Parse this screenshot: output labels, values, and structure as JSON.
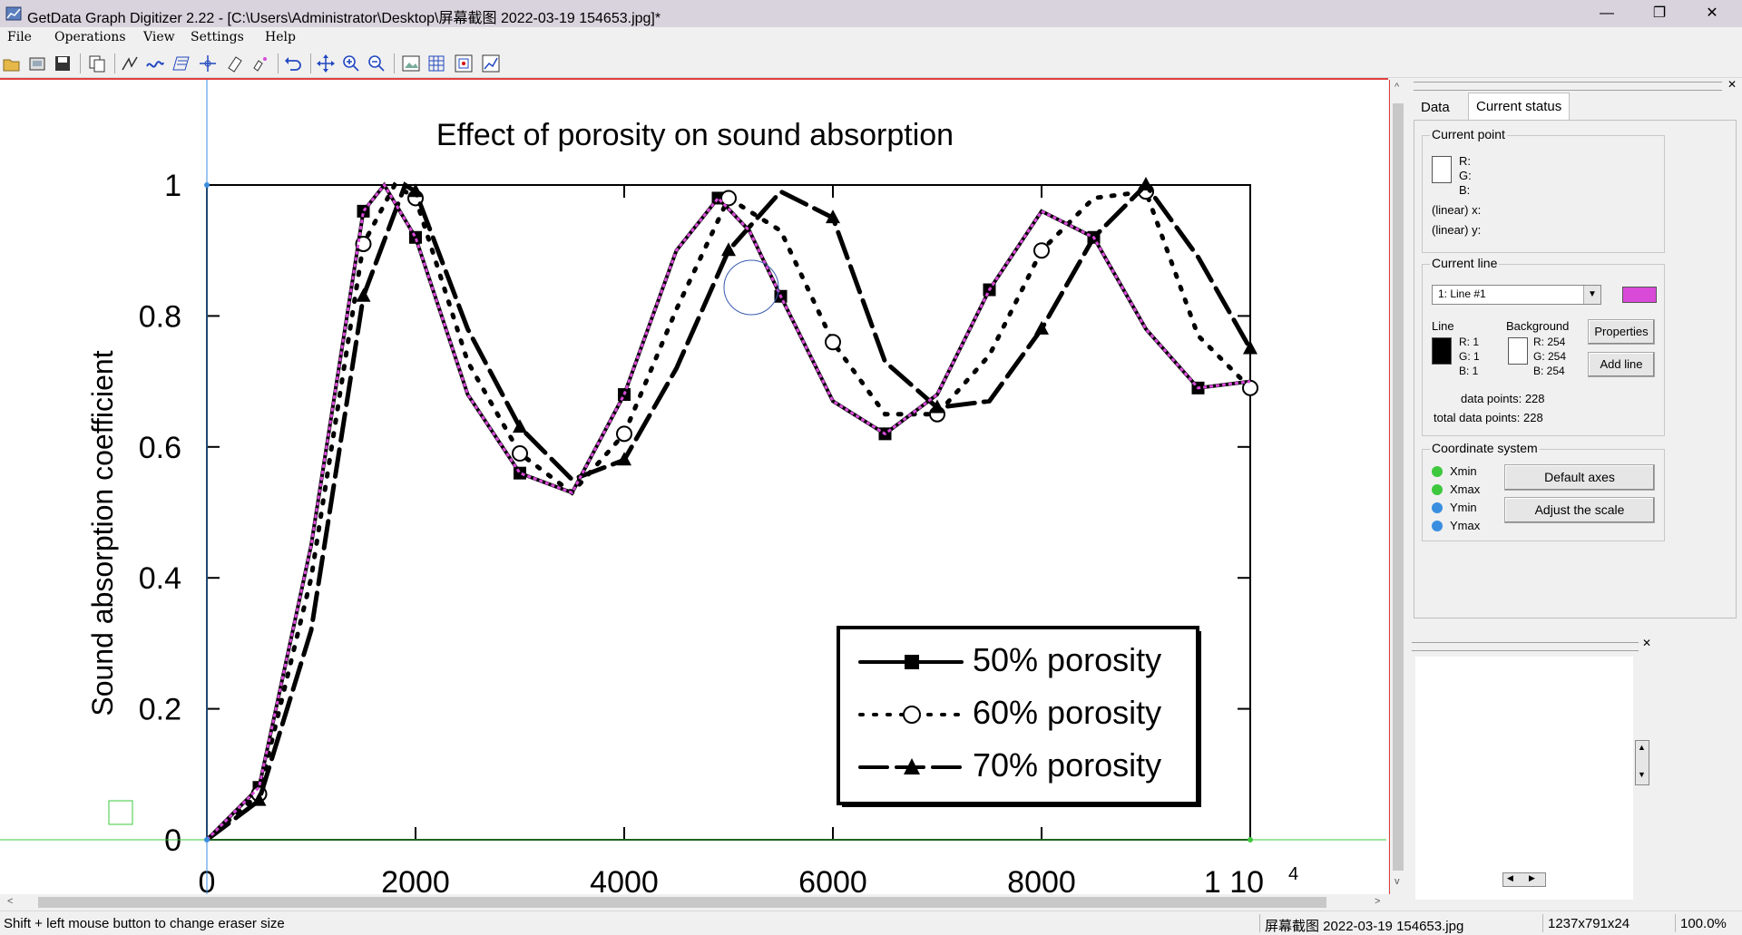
{
  "app": {
    "title": "GetData Graph Digitizer 2.22 - [C:\\Users\\Administrator\\Desktop\\屏幕截图 2022-03-19 154653.jpg]*",
    "window_controls": {
      "minimize": "—",
      "maximize": "❐",
      "close": "✕"
    }
  },
  "menu": [
    "File",
    "Operations",
    "View",
    "Settings",
    "Help"
  ],
  "toolbar": {
    "buttons": [
      "open-icon",
      "scan-icon",
      "save-icon",
      "copy-icon",
      "point-capture-icon",
      "line-capture-icon",
      "area-capture-icon",
      "axis-icon",
      "eraser-icon",
      "eraser-points-icon",
      "undo-icon",
      "move-icon",
      "zoom-in-icon",
      "zoom-out-icon",
      "image-icon",
      "grid-icon",
      "scale-icon",
      "graph-icon"
    ]
  },
  "plot": {
    "title": "Effect of porosity on sound absorption",
    "ylabel": "Sound absorption coefficient",
    "y_ticks": [
      "0",
      "0.2",
      "0.4",
      "0.6",
      "0.8",
      "1"
    ],
    "x_ticks": [
      "0",
      "2000",
      "4000",
      "6000",
      "8000",
      "1 10"
    ],
    "x_exponent": "4",
    "legend": [
      "50% porosity",
      "60% porosity",
      "70% porosity"
    ]
  },
  "chart_data": {
    "type": "line",
    "title": "Effect of porosity on sound absorption",
    "xlabel": "",
    "ylabel": "Sound absorption coefficient",
    "xlim": [
      0,
      10000
    ],
    "ylim": [
      0,
      1
    ],
    "x_tick_labels": [
      "0",
      "2000",
      "4000",
      "6000",
      "8000",
      "1 10^4"
    ],
    "y_tick_labels": [
      "0",
      "0.2",
      "0.4",
      "0.6",
      "0.8",
      "1"
    ],
    "legend_position": "bottom-right",
    "series": [
      {
        "name": "50% porosity",
        "style": "solid-square",
        "x": [
          0,
          500,
          1000,
          1500,
          1700,
          2000,
          2500,
          3000,
          3500,
          4000,
          4500,
          4900,
          5200,
          5500,
          6000,
          6500,
          7000,
          7500,
          8000,
          8500,
          9000,
          9500,
          10000
        ],
        "y": [
          0,
          0.08,
          0.45,
          0.96,
          1.0,
          0.92,
          0.68,
          0.56,
          0.53,
          0.68,
          0.9,
          0.98,
          0.93,
          0.83,
          0.67,
          0.62,
          0.68,
          0.84,
          0.96,
          0.92,
          0.78,
          0.69,
          0.7
        ]
      },
      {
        "name": "60% porosity",
        "style": "dotted-circle",
        "x": [
          0,
          500,
          1000,
          1500,
          1800,
          2000,
          2500,
          3000,
          3500,
          4000,
          4500,
          5000,
          5500,
          6000,
          6500,
          7000,
          7500,
          8000,
          8500,
          9000,
          9500,
          10000
        ],
        "y": [
          0,
          0.07,
          0.4,
          0.91,
          1.0,
          0.98,
          0.73,
          0.59,
          0.53,
          0.62,
          0.81,
          0.98,
          0.93,
          0.76,
          0.65,
          0.65,
          0.74,
          0.9,
          0.98,
          0.99,
          0.77,
          0.69
        ]
      },
      {
        "name": "70% porosity",
        "style": "dash-triangle",
        "x": [
          0,
          500,
          1000,
          1500,
          1900,
          2000,
          2500,
          3000,
          3500,
          4000,
          4500,
          5000,
          5500,
          6000,
          6500,
          7000,
          7500,
          8000,
          8500,
          9000,
          9500,
          10000
        ],
        "y": [
          0,
          0.06,
          0.32,
          0.83,
          1.0,
          0.99,
          0.78,
          0.63,
          0.55,
          0.58,
          0.72,
          0.9,
          0.99,
          0.95,
          0.73,
          0.66,
          0.67,
          0.78,
          0.92,
          1.0,
          0.89,
          0.75
        ]
      }
    ],
    "digitized_line": {
      "name": "1: Line #1",
      "color": "#d94ad9",
      "data_points": 228
    }
  },
  "panel": {
    "close": "✕",
    "tabs": [
      "Data",
      "Current status"
    ],
    "current_point": {
      "label": "Current point",
      "r": "R:",
      "g": "G:",
      "b": "B:",
      "x": "(linear)  x:",
      "y": "(linear)  y:"
    },
    "current_line": {
      "label": "Current line",
      "selected": "1: Line #1",
      "swatch_color": "#d94ad9",
      "line_label": "Line",
      "line_rgb": [
        "R: 1",
        "G: 1",
        "B: 1"
      ],
      "bg_label": "Background",
      "bg_rgb": [
        "R: 254",
        "G: 254",
        "B: 254"
      ],
      "properties": "Properties",
      "add_line": "Add line",
      "data_points": "data points:  228",
      "total_data_points": "total data points:  228"
    },
    "coordinate_system": {
      "label": "Coordinate system",
      "xmin": "Xmin",
      "xmax": "Xmax",
      "ymin": "Ymin",
      "ymax": "Ymax",
      "default_axes": "Default axes",
      "adjust_scale": "Adjust the scale",
      "x_color": "#3ec83e",
      "y_color": "#3a8ee0"
    }
  },
  "panel2": {
    "close": "✕",
    "scroll_up": "▲",
    "scroll_down": "▼",
    "scroll_left": "◀",
    "scroll_right": "▶"
  },
  "status": {
    "hint": "Shift + left mouse button to change eraser size",
    "file": "屏幕截图 2022-03-19 154653.jpg",
    "dims": "1237x791x24",
    "zoom": "100.0%"
  },
  "scroll": {
    "left": "<",
    "right": ">",
    "up": "^",
    "down": "v"
  }
}
